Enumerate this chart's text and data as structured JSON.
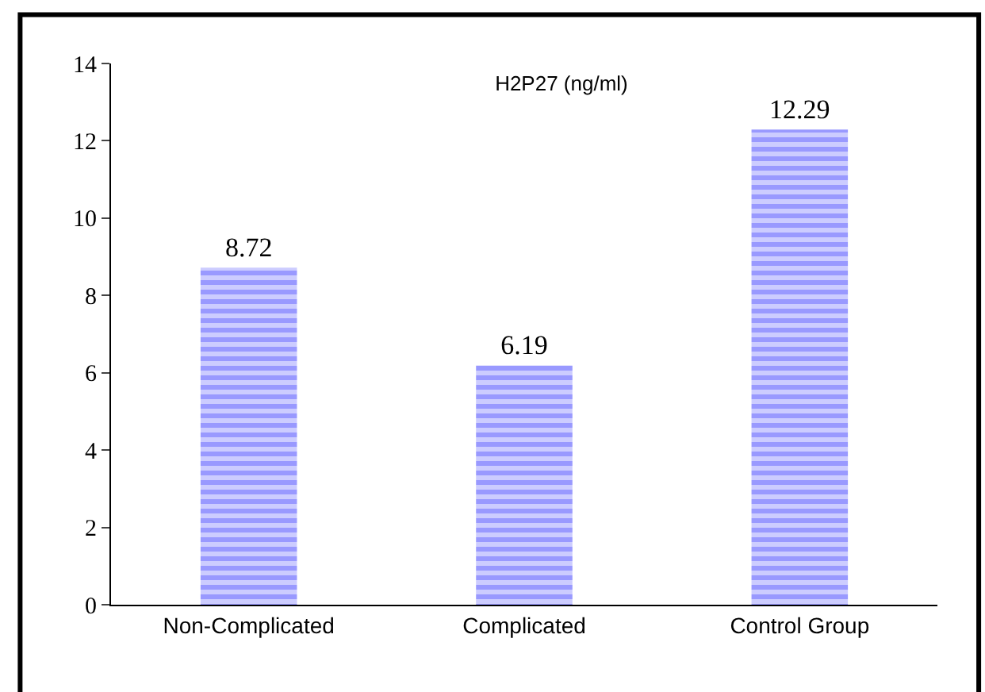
{
  "chart_data": {
    "type": "bar",
    "title": "H2P27 (ng/ml)",
    "categories": [
      "Non-Complicated",
      "Complicated",
      "Control Group"
    ],
    "values": [
      8.72,
      6.19,
      12.29
    ],
    "color": "#9999ff",
    "ylim": [
      0,
      14
    ],
    "yticks": [
      0,
      2,
      4,
      6,
      8,
      10,
      12,
      14
    ],
    "data_labels": true
  }
}
